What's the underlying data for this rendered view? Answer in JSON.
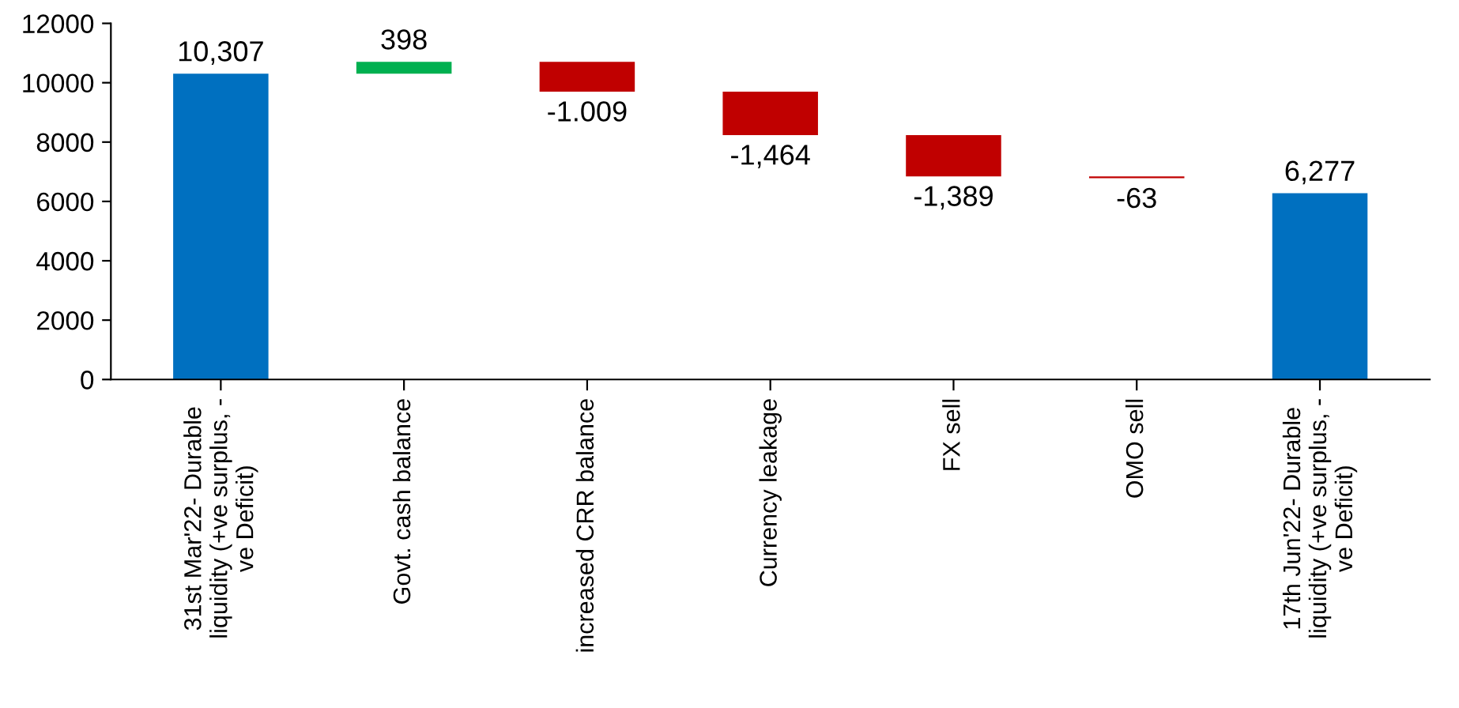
{
  "chart_data": {
    "type": "bar",
    "categories": [
      "31st Mar'22- Durable\nliquidity (+ve surplus, -\nve Deficit)",
      "Govt. cash balance",
      "increased CRR balance",
      "Currency leakage",
      "FX sell",
      "OMO sell",
      "17th Jun'22- Durable\nliquidity (+ve surplus, -\nve Deficit)"
    ],
    "values": [
      10307,
      398,
      -1009,
      -1464,
      -1389,
      -63,
      6277
    ],
    "base": [
      0,
      10307,
      10705,
      9696,
      8232,
      6843,
      0
    ],
    "colors": [
      "#0070c0",
      "#00b050",
      "#c00000",
      "#c00000",
      "#c00000",
      "#c00000",
      "#0070c0"
    ],
    "value_labels": [
      "10,307",
      "398",
      null,
      "-1,464",
      "-1,389",
      "-63",
      "6,277"
    ],
    "annotations": [
      {
        "text": "-1.009",
        "x": "increased CRR balance",
        "y": 9696
      }
    ],
    "ylim": [
      0,
      12000
    ],
    "yticks": [
      0,
      2000,
      4000,
      6000,
      8000,
      10000,
      12000
    ],
    "grid": false,
    "legend": false
  }
}
